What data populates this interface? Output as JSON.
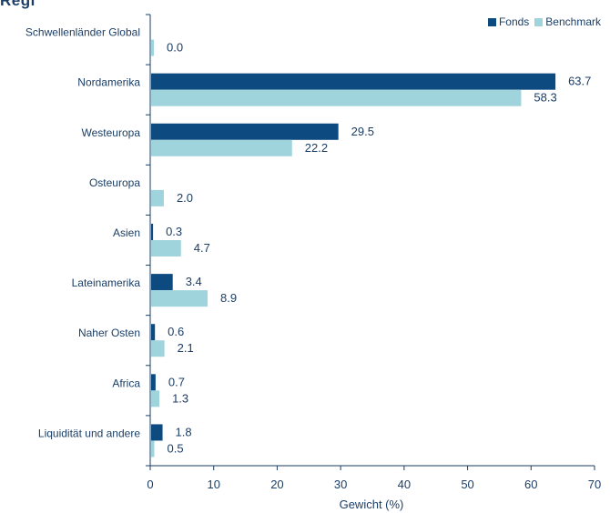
{
  "heading": "Regi",
  "chart_data": {
    "type": "bar",
    "orientation": "horizontal",
    "categories": [
      "Schwellenländer Global",
      "Nordamerika",
      "Westeuropa",
      "Osteuropa",
      "Asien",
      "Lateinamerika",
      "Naher Osten",
      "Africa",
      "Liquidität und andere"
    ],
    "series": [
      {
        "name": "Fonds",
        "color": "#0d4a80",
        "values": [
          null,
          63.7,
          29.5,
          null,
          0.3,
          3.4,
          0.6,
          0.7,
          1.8
        ],
        "labels": [
          "",
          "63.7",
          "29.5",
          "",
          "0.3",
          "3.4",
          "0.6",
          "0.7",
          "1.8"
        ]
      },
      {
        "name": "Benchmark",
        "color": "#9fd4dd",
        "values": [
          0.0,
          58.3,
          22.2,
          2.0,
          4.7,
          8.9,
          2.1,
          1.3,
          0.5
        ],
        "labels": [
          "0.0",
          "58.3",
          "22.2",
          "2.0",
          "4.7",
          "8.9",
          "2.1",
          "1.3",
          "0.5"
        ]
      }
    ],
    "xlabel": "Gewicht (%)",
    "xlim": [
      0,
      70
    ],
    "xticks": [
      "0",
      "10",
      "20",
      "30",
      "40",
      "50",
      "60",
      "70"
    ],
    "legend_position": "top-right",
    "grid": false
  }
}
